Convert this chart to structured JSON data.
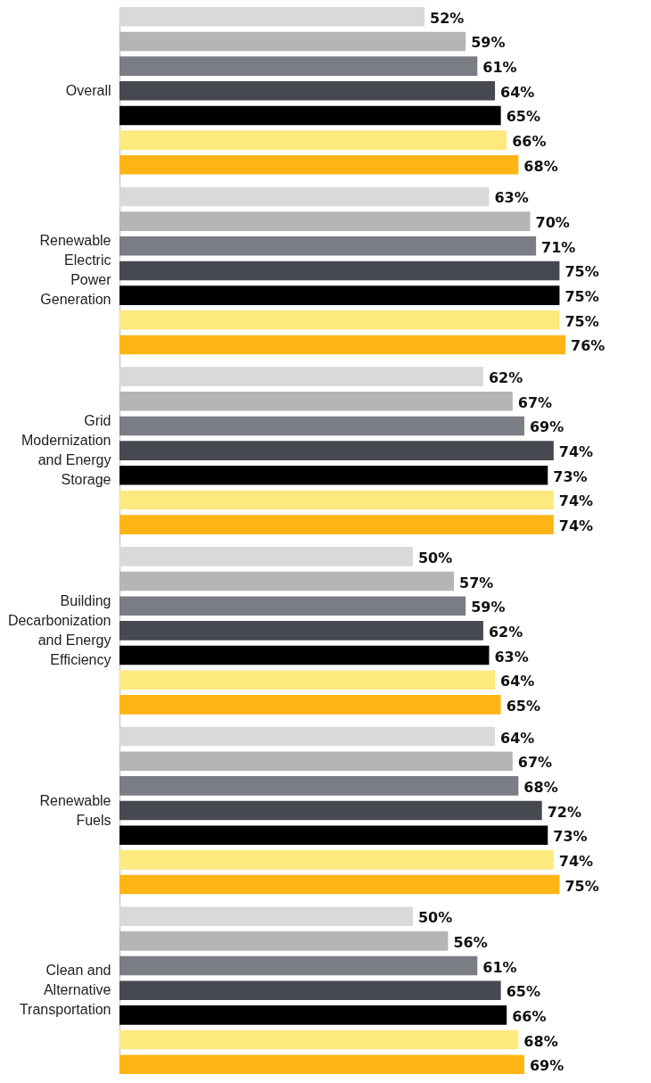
{
  "chart_data": {
    "type": "bar",
    "orientation": "horizontal",
    "categories": [
      "Overall",
      "Renewable Electric Power Generation",
      "Grid Modernization and Energy Storage",
      "Building Decarbonization and Energy Efficiency",
      "Renewable Fuels",
      "Clean and Alternative Transportation"
    ],
    "series": [
      {
        "color": "#d9d9d9",
        "values": [
          52,
          63,
          62,
          50,
          64,
          50
        ],
        "value_labels": [
          "52%",
          "63%",
          "62%",
          "50%",
          "64%",
          "50%"
        ]
      },
      {
        "color": "#b3b5b7",
        "values": [
          59,
          70,
          67,
          57,
          67,
          56
        ],
        "value_labels": [
          "59%",
          "70%",
          "67%",
          "57%",
          "67%",
          "56%"
        ]
      },
      {
        "color": "#7b7d84",
        "values": [
          61,
          71,
          69,
          59,
          68,
          61
        ],
        "value_labels": [
          "61%",
          "71%",
          "69%",
          "59%",
          "68%",
          "61%"
        ]
      },
      {
        "color": "#474950",
        "values": [
          64,
          75,
          74,
          62,
          72,
          65
        ],
        "value_labels": [
          "64%",
          "75%",
          "74%",
          "62%",
          "72%",
          "65%"
        ]
      },
      {
        "color": "#000000",
        "values": [
          65,
          75,
          73,
          63,
          73,
          66
        ],
        "value_labels": [
          "65%",
          "75%",
          "73%",
          "63%",
          "73%",
          "66%"
        ]
      },
      {
        "color": "#fde97e",
        "values": [
          66,
          75,
          74,
          64,
          74,
          68
        ],
        "value_labels": [
          "66%",
          "75%",
          "74%",
          "64%",
          "74%",
          "68%"
        ]
      },
      {
        "color": "#fdb515",
        "values": [
          68,
          76,
          74,
          65,
          75,
          69
        ],
        "value_labels": [
          "68%",
          "76%",
          "74%",
          "65%",
          "75%",
          "69%"
        ]
      }
    ],
    "legend": false,
    "grid": false
  }
}
